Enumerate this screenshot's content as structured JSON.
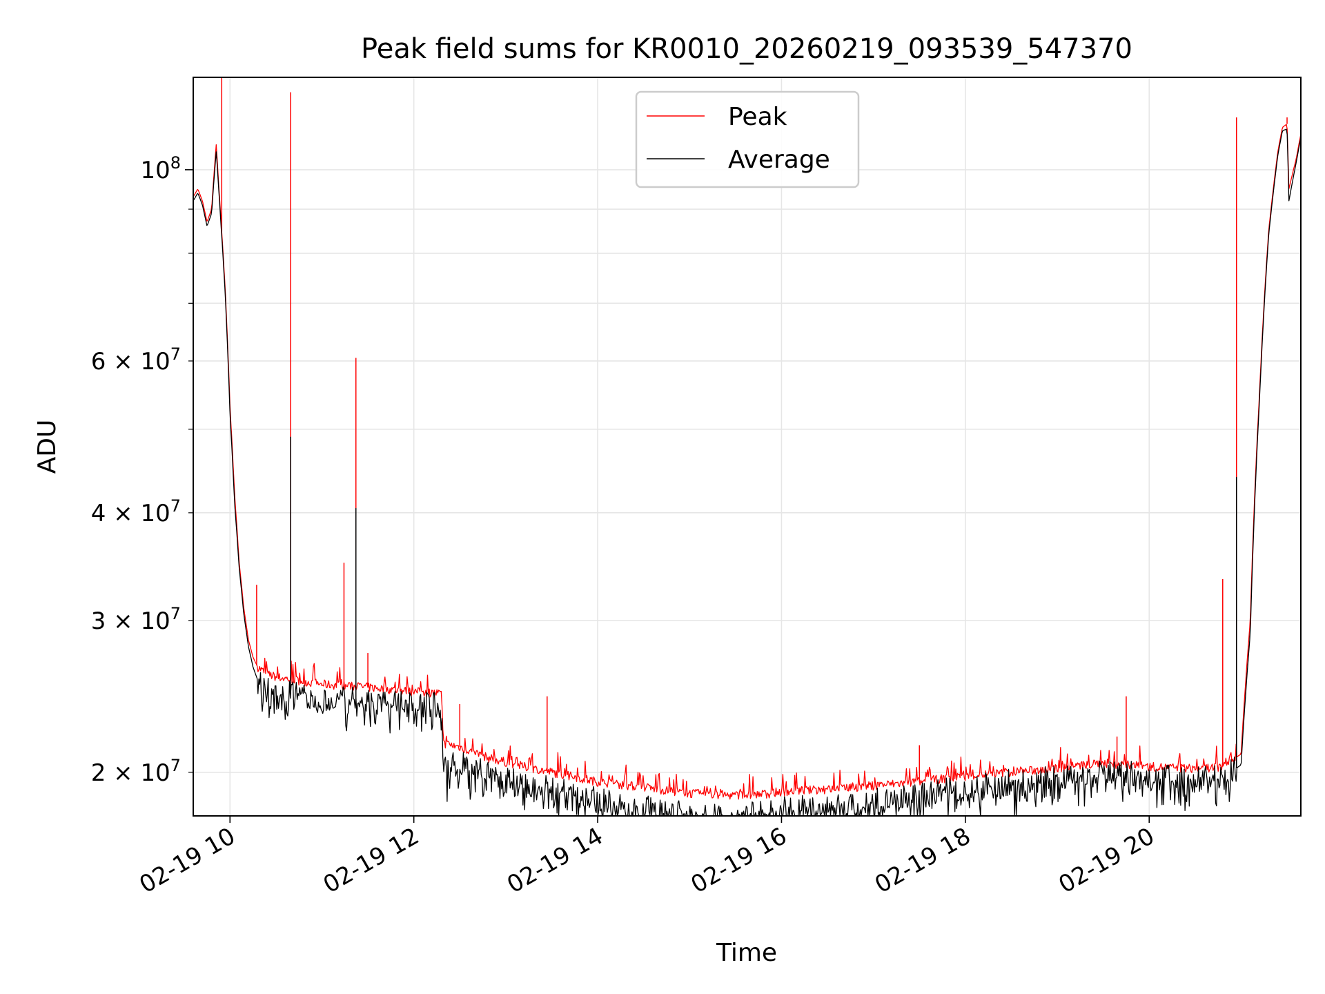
{
  "chart_data": {
    "type": "line",
    "title": "Peak field sums for KR0010_20260219_093539_547370",
    "xlabel": "Time",
    "ylabel": "ADU",
    "yscale": "log",
    "xlim_hours": [
      9.6,
      21.65
    ],
    "ylim": [
      17800000,
      128000000
    ],
    "grid": true,
    "legend_placement": "upper center",
    "colors": {
      "peak": "#ff0000",
      "average": "#000000",
      "grid": "#e6e6e6"
    },
    "x_ticks": [
      {
        "hour": 10,
        "label": "02-19 10"
      },
      {
        "hour": 12,
        "label": "02-19 12"
      },
      {
        "hour": 14,
        "label": "02-19 14"
      },
      {
        "hour": 16,
        "label": "02-19 16"
      },
      {
        "hour": 18,
        "label": "02-19 18"
      },
      {
        "hour": 20,
        "label": "02-19 20"
      }
    ],
    "y_ticks_major": [
      {
        "value": 100000000,
        "base": "10",
        "exp": "8"
      }
    ],
    "y_ticks_minor": [
      {
        "value": 20000000,
        "coef": "2",
        "base": "10",
        "exp": "7"
      },
      {
        "value": 30000000,
        "coef": "3",
        "base": "10",
        "exp": "7"
      },
      {
        "value": 40000000,
        "coef": "4",
        "base": "10",
        "exp": "7"
      },
      {
        "value": 60000000,
        "coef": "6",
        "base": "10",
        "exp": "7"
      }
    ],
    "y_ticks_minor_unlabeled": [
      50000000,
      70000000,
      80000000,
      90000000
    ],
    "series": [
      {
        "name": "Peak",
        "x_hours": [
          9.6,
          9.65,
          9.7,
          9.75,
          9.8,
          9.85,
          9.88,
          9.9,
          9.95,
          10.0,
          10.05,
          10.1,
          10.15,
          10.2,
          10.25,
          10.3,
          10.4,
          10.5,
          10.7,
          11.0,
          11.5,
          12.0,
          12.3,
          12.32,
          12.5,
          12.8,
          13.2,
          13.6,
          14.0,
          14.5,
          15.0,
          15.5,
          15.8,
          16.0,
          16.5,
          17.0,
          17.5,
          18.0,
          18.5,
          19.0,
          19.5,
          20.0,
          20.5,
          20.8,
          21.0,
          21.1,
          21.2,
          21.3,
          21.4,
          21.45,
          21.5,
          21.52,
          21.6,
          21.65
        ],
        "values": [
          93000000,
          95000000,
          92000000,
          87000000,
          90000000,
          107000000,
          95000000,
          88000000,
          72000000,
          53000000,
          42000000,
          35000000,
          31000000,
          28500000,
          27200000,
          26500000,
          26000000,
          25800000,
          25600000,
          25300000,
          25100000,
          24800000,
          24700000,
          21600000,
          21400000,
          20800000,
          20300000,
          19900000,
          19500000,
          19200000,
          18900000,
          18800000,
          18850000,
          19000000,
          19100000,
          19300000,
          19500000,
          19800000,
          20000000,
          20200000,
          20500000,
          20300000,
          20200000,
          20300000,
          21000000,
          30000000,
          55000000,
          85000000,
          105000000,
          112000000,
          113000000,
          95000000,
          103000000,
          110000000
        ],
        "spikes": [
          {
            "hour": 9.91,
            "value": 128000000
          },
          {
            "hour": 10.29,
            "value": 33000000
          },
          {
            "hour": 10.66,
            "value": 123000000
          },
          {
            "hour": 11.24,
            "value": 35000000
          },
          {
            "hour": 11.37,
            "value": 60500000
          },
          {
            "hour": 11.5,
            "value": 27500000
          },
          {
            "hour": 12.5,
            "value": 24000000
          },
          {
            "hour": 13.45,
            "value": 24500000
          },
          {
            "hour": 17.5,
            "value": 21500000
          },
          {
            "hour": 19.65,
            "value": 22000000
          },
          {
            "hour": 19.75,
            "value": 24500000
          },
          {
            "hour": 20.8,
            "value": 33500000
          },
          {
            "hour": 20.95,
            "value": 115000000
          },
          {
            "hour": 21.5,
            "value": 115000000
          }
        ]
      },
      {
        "name": "Average",
        "x_hours": [
          9.6,
          9.65,
          9.7,
          9.75,
          9.8,
          9.85,
          9.88,
          9.9,
          9.95,
          10.0,
          10.05,
          10.1,
          10.15,
          10.2,
          10.25,
          10.3,
          10.4,
          10.5,
          10.7,
          11.0,
          11.5,
          12.0,
          12.3,
          12.32,
          12.5,
          12.8,
          13.2,
          13.6,
          14.0,
          14.5,
          15.0,
          15.5,
          15.8,
          16.0,
          16.5,
          17.0,
          17.5,
          18.0,
          18.5,
          19.0,
          19.5,
          20.0,
          20.5,
          20.8,
          21.0,
          21.1,
          21.2,
          21.3,
          21.4,
          21.45,
          21.5,
          21.52,
          21.6,
          21.65
        ],
        "values": [
          92000000,
          94000000,
          91000000,
          86000000,
          89000000,
          105000000,
          94000000,
          87000000,
          71000000,
          52000000,
          41000000,
          34500000,
          30500000,
          28000000,
          26500000,
          25600000,
          25000000,
          24800000,
          24600000,
          24400000,
          24200000,
          24000000,
          23900000,
          20300000,
          20600000,
          20000000,
          19400000,
          19000000,
          18600000,
          18200000,
          17900000,
          17850000,
          17900000,
          18100000,
          18300000,
          18500000,
          18800000,
          19200000,
          19500000,
          19700000,
          20100000,
          19800000,
          19600000,
          19700000,
          20400000,
          29000000,
          54000000,
          84000000,
          104000000,
          111000000,
          111500000,
          92000000,
          102000000,
          109000000
        ],
        "spikes": [
          {
            "hour": 10.66,
            "value": 49000000
          },
          {
            "hour": 11.37,
            "value": 40500000
          },
          {
            "hour": 20.95,
            "value": 44000000
          }
        ]
      }
    ]
  }
}
